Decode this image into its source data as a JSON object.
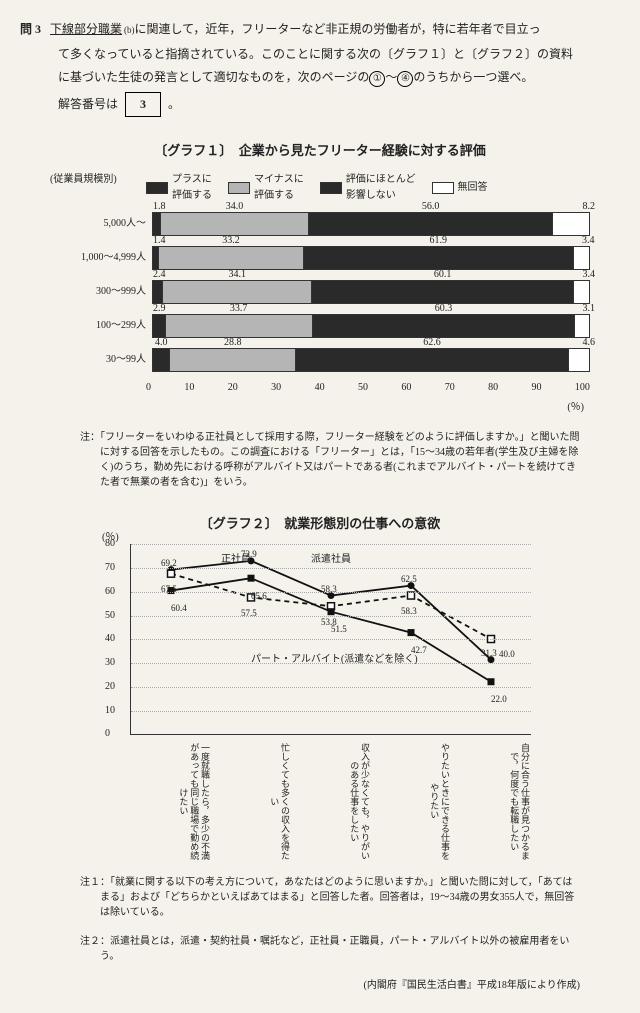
{
  "question": {
    "number": "問 3",
    "underlined": "下線部分職業",
    "sub": "(b)",
    "line1_rest": "に関連して，近年，フリーターなど非正規の労働者が，特に若年者で目立っ",
    "line2": "て多くなっていると指摘されている。このことに関する次の〔グラフ１〕と〔グラフ２〕の資料",
    "line3_a": "に基づいた生徒の発言として適切なものを，次のページの",
    "opt1": "①",
    "opt_dash": "〜",
    "opt4": "④",
    "line3_b": "のうちから一つ選べ。",
    "answer_label": "解答番号は",
    "answer_num": "3",
    "period": "。"
  },
  "graph1": {
    "title": "〔グラフ１〕　企業から見たフリーター経験に対する評価",
    "row_header": "(従業員規模別)",
    "legend": [
      {
        "label": "プラスに\n評価する",
        "color": "#2a2a2a"
      },
      {
        "label": "マイナスに\n評価する",
        "color": "#b5b5b5"
      },
      {
        "label": "評価にほとんど\n影響しない",
        "color": "#2a2a2a"
      },
      {
        "label": "無回答",
        "color": "#ffffff"
      }
    ],
    "colors": {
      "dark": "#2a2a2a",
      "gray": "#b5b5b5",
      "white": "#ffffff"
    },
    "rows": [
      {
        "label": "5,000人〜",
        "vals": [
          1.8,
          34.0,
          56.0,
          8.2
        ]
      },
      {
        "label": "1,000〜4,999人",
        "vals": [
          1.4,
          33.2,
          61.9,
          3.4
        ]
      },
      {
        "label": "300〜999人",
        "vals": [
          2.4,
          34.1,
          60.1,
          3.4
        ]
      },
      {
        "label": "100〜299人",
        "vals": [
          2.9,
          33.7,
          60.3,
          3.1
        ]
      },
      {
        "label": "30〜99人",
        "vals": [
          4.0,
          28.8,
          62.6,
          4.6
        ]
      }
    ],
    "xticks": [
      "0",
      "10",
      "20",
      "30",
      "40",
      "50",
      "60",
      "70",
      "80",
      "90",
      "100"
    ],
    "x_unit": "(％)",
    "note_pref": "注：",
    "note": "「フリーターをいわゆる正社員として採用する際，フリーター経験をどのように評価しますか。」と聞いた問に対する回答を示したもの。この調査における「フリーター」とは，「15〜34歳の若年者(学生及び主婦を除く)のうち，勤め先における呼称がアルバイト又はパートである者(これまでアルバイト・パートを続けてきた者で無業の者を含む)」をいう。"
  },
  "graph2": {
    "title": "〔グラフ２〕　就業形態別の仕事への意欲",
    "y_unit": "(％)",
    "yticks": [
      0,
      10,
      20,
      30,
      40,
      50,
      60,
      70,
      80
    ],
    "ymax": 80,
    "series": [
      {
        "name": "正社員",
        "label": "正社員",
        "marker": "circle",
        "color": "#111",
        "dash": "0",
        "vals": [
          69.2,
          72.9,
          58.3,
          62.5,
          31.3
        ]
      },
      {
        "name": "派遣社員",
        "label": "派遣社員",
        "marker": "square-open",
        "color": "#111",
        "dash": "5,4",
        "vals": [
          67.5,
          57.5,
          53.8,
          58.3,
          40.0
        ]
      },
      {
        "name": "パート・アルバイト",
        "label": "パート・アルバイト(派遣などを除く)",
        "marker": "square",
        "color": "#111",
        "dash": "0",
        "vals": [
          60.4,
          65.6,
          51.5,
          42.7,
          22.0
        ]
      }
    ],
    "x_labels": [
      "一度就職したら，多少の不満があっても同じ職場で勤め続けたい",
      "忙しくても多くの収入を得たい",
      "収入が少なくても，やりがいのある仕事をしたい",
      "やりたいときにできる仕事をやりたい",
      "自分に合う仕事が見つかるまで，何度でも転職したい"
    ],
    "note1_pref": "注１：",
    "note1": "「就業に関する以下の考え方について，あなたはどのように思いますか。」と聞いた問に対して，「あてはまる」および「どちらかといえばあてはまる」と回答した者。回答者は，19〜34歳の男女355人で，無回答は除いている。",
    "note2_pref": "注２：",
    "note2": "派遣社員とは，派遣・契約社員・嘱託など，正社員・正職員，パート・アルバイト以外の被雇用者をいう。",
    "source": "(内閣府『国民生活白書』平成18年版により作成)"
  }
}
